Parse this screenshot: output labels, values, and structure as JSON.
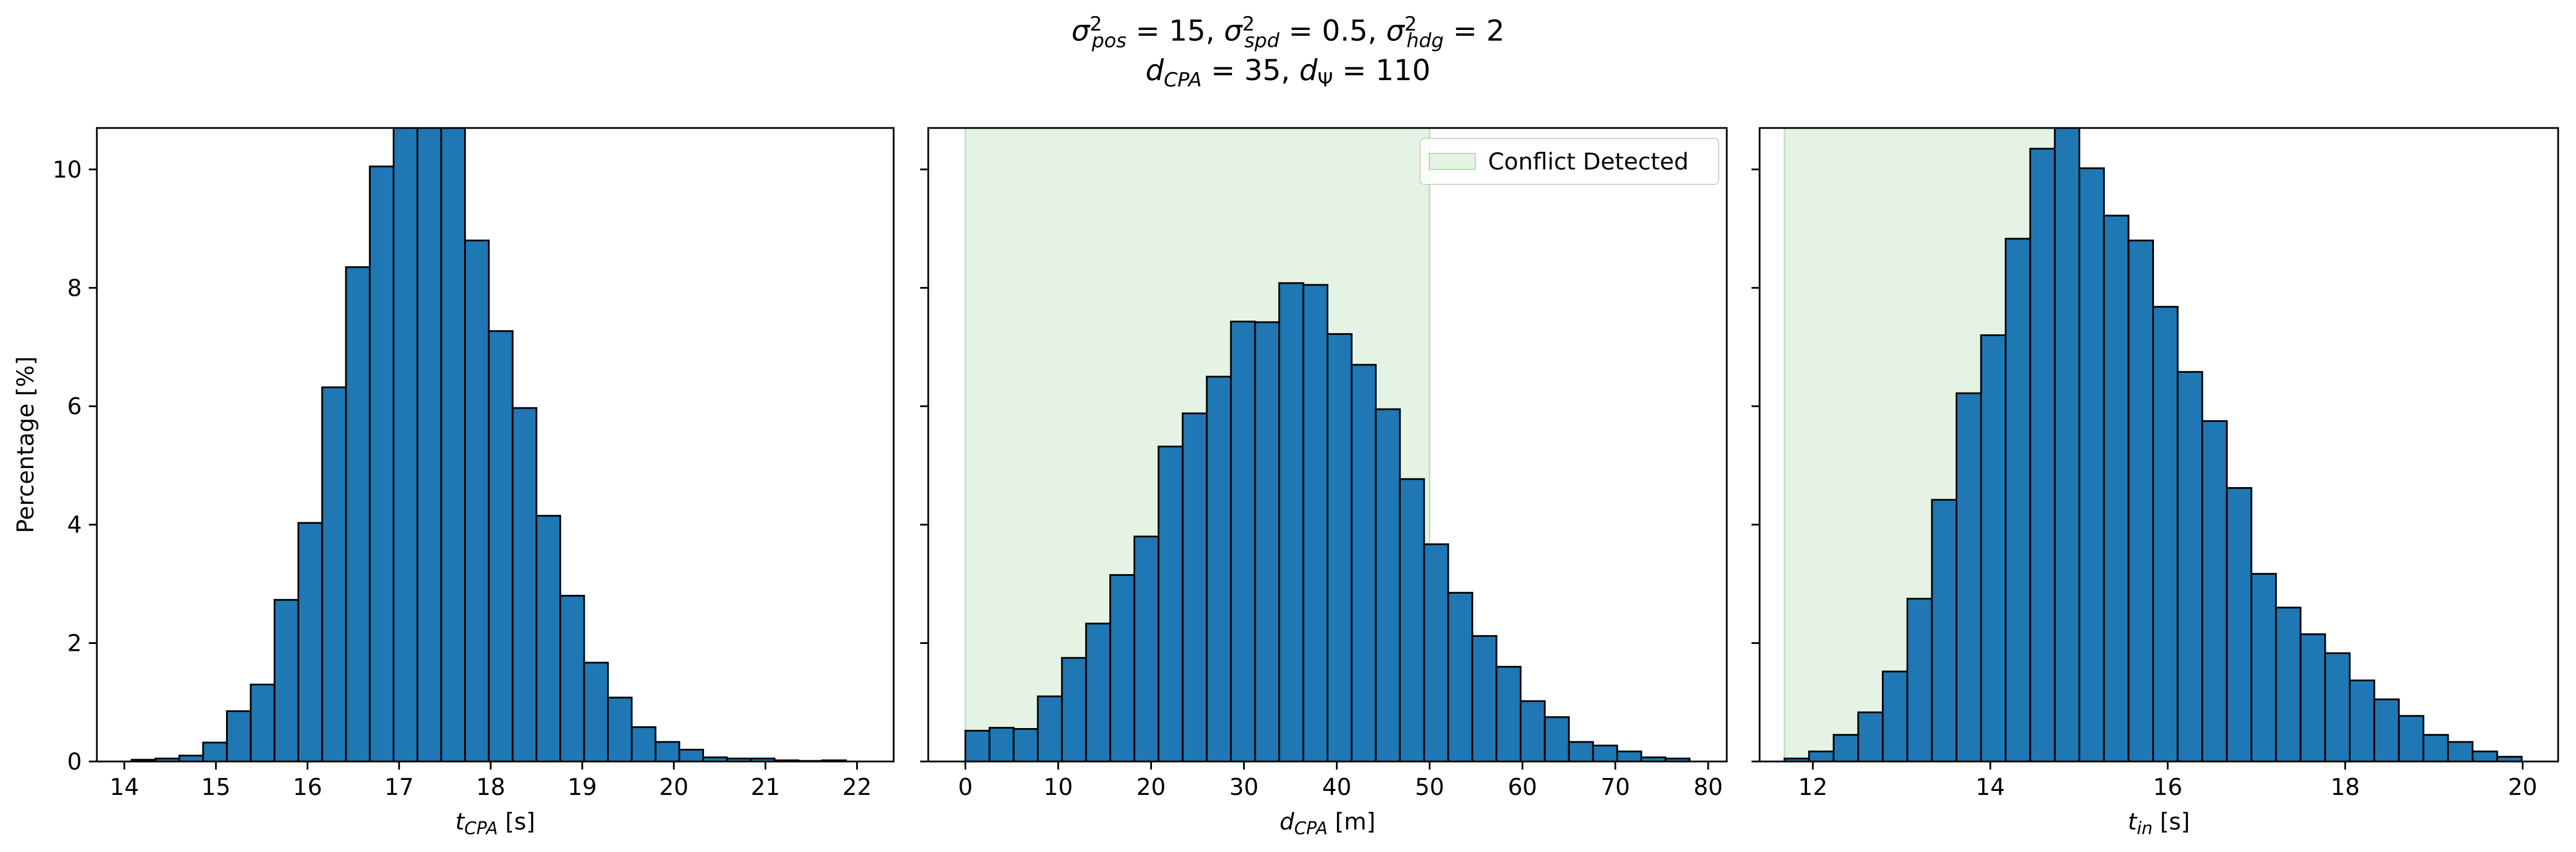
{
  "figure": {
    "title_line_1": "σ²pos = 15, σ²spd = 0.5, σ²hdg = 2",
    "title_line_2": "dCPA = 35, dΨ = 110"
  },
  "colors": {
    "bar": "#1f77b4",
    "edge": "#000000",
    "region": "#2ca02c"
  },
  "chart_data": [
    {
      "type": "bar",
      "xlabel": "tCPA [s]",
      "ylabel": "Percentage [%]",
      "xlim": [
        13.7,
        22.4
      ],
      "ylim": [
        0,
        10.7
      ],
      "xticks": [
        14,
        15,
        16,
        17,
        18,
        19,
        20,
        21,
        22
      ],
      "yticks": [
        0,
        2,
        4,
        6,
        8,
        10
      ],
      "bins": {
        "start": 14.08,
        "width": 0.26,
        "values": [
          0.03,
          0.05,
          0.1,
          0.32,
          0.85,
          1.3,
          2.73,
          4.03,
          6.32,
          8.35,
          10.05,
          11.2,
          11.3,
          10.8,
          8.8,
          7.27,
          5.97,
          4.15,
          2.8,
          1.67,
          1.08,
          0.58,
          0.33,
          0.2,
          0.07,
          0.05,
          0.05,
          0.02,
          0.01,
          0.02
        ]
      },
      "region": null
    },
    {
      "type": "bar",
      "xlabel": "dCPA [m]",
      "ylabel": "",
      "xlim": [
        -4,
        82
      ],
      "ylim": [
        0,
        10.7
      ],
      "xticks": [
        0,
        10,
        20,
        30,
        40,
        50,
        60,
        70,
        80
      ],
      "yticks": [
        0,
        2,
        4,
        6,
        8,
        10
      ],
      "bins": {
        "start": 0,
        "width": 2.6,
        "values": [
          0.52,
          0.57,
          0.55,
          1.1,
          1.75,
          2.33,
          3.15,
          3.8,
          5.32,
          5.88,
          6.5,
          7.43,
          7.42,
          8.08,
          8.05,
          7.22,
          6.7,
          5.95,
          4.77,
          3.67,
          2.85,
          2.12,
          1.6,
          1.02,
          0.75,
          0.33,
          0.27,
          0.17,
          0.07,
          0.05
        ]
      },
      "region": {
        "x0": 0,
        "x1": 50,
        "legend": "Conflict Detected"
      }
    },
    {
      "type": "bar",
      "xlabel": "tin [s]",
      "ylabel": "",
      "xlim": [
        11.4,
        20.4
      ],
      "ylim": [
        0,
        10.7
      ],
      "xticks": [
        12,
        14,
        16,
        18,
        20
      ],
      "yticks": [
        0,
        2,
        4,
        6,
        8,
        10
      ],
      "bins": {
        "start": 11.68,
        "width": 0.277,
        "values": [
          0.05,
          0.17,
          0.45,
          0.83,
          1.52,
          2.75,
          4.42,
          6.22,
          7.2,
          8.83,
          10.35,
          10.8,
          10.02,
          9.22,
          8.8,
          7.68,
          6.58,
          5.75,
          4.62,
          3.17,
          2.6,
          2.15,
          1.83,
          1.37,
          1.05,
          0.77,
          0.45,
          0.33,
          0.17,
          0.08
        ]
      },
      "region": {
        "x0": 11.68,
        "x1": 14.8,
        "legend": ""
      }
    }
  ]
}
